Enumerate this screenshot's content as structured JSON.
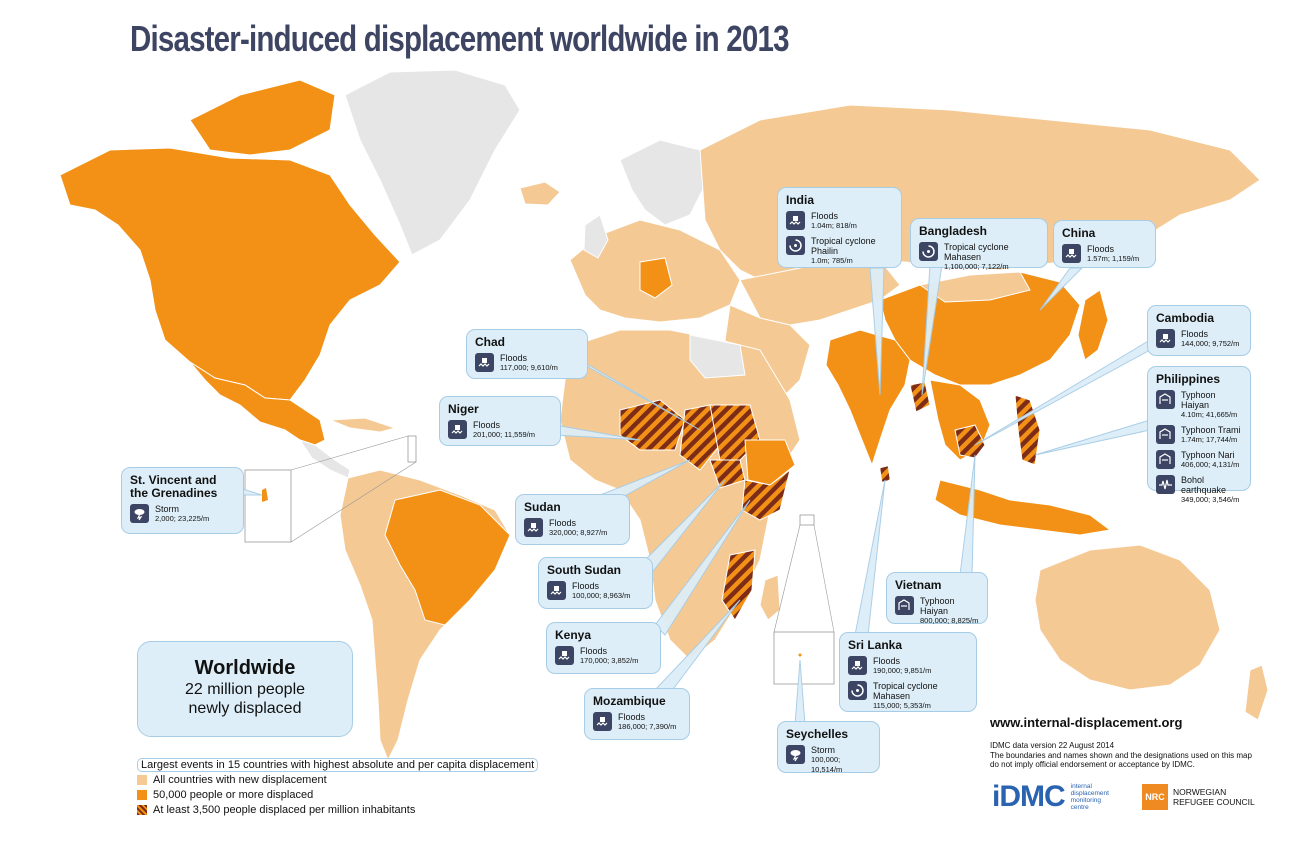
{
  "title": "Disaster-induced displacement worldwide in 2013",
  "colors": {
    "none": "#e6e6e6",
    "any": "#f5c994",
    "over50k": "#f29115",
    "hatch_stripe": "#7c2c17",
    "callout_bg": "#ddeef8",
    "callout_border": "#a7cde6",
    "icon_bg": "#3c4564",
    "title": "#3d4563"
  },
  "callouts": [
    {
      "country": "India",
      "events": [
        {
          "icon": "flood-icon",
          "name": "Floods",
          "value": "1.04m; 818/m"
        },
        {
          "icon": "cyclone-icon",
          "name": "Tropical cyclone Phailin",
          "value": "1.0m; 785/m"
        }
      ]
    },
    {
      "country": "Bangladesh",
      "events": [
        {
          "icon": "cyclone-icon",
          "name": "Tropical cyclone Mahasen",
          "value": "1,100,000; 7,122/m"
        }
      ]
    },
    {
      "country": "China",
      "events": [
        {
          "icon": "flood-icon",
          "name": "Floods",
          "value": "1.57m; 1,159/m"
        }
      ]
    },
    {
      "country": "Cambodia",
      "events": [
        {
          "icon": "flood-icon",
          "name": "Floods",
          "value": "144,000; 9,752/m"
        }
      ]
    },
    {
      "country": "Philippines",
      "events": [
        {
          "icon": "typhoon-icon",
          "name": "Typhoon Haiyan",
          "value": "4.10m; 41,665/m"
        },
        {
          "icon": "typhoon-icon",
          "name": "Typhoon Trami",
          "value": "1.74m; 17,744/m"
        },
        {
          "icon": "typhoon-icon",
          "name": "Typhoon Nari",
          "value": "406,000; 4,131/m"
        },
        {
          "icon": "earthquake-icon",
          "name": "Bohol earthquake",
          "value": "349,000; 3,546/m"
        }
      ]
    },
    {
      "country": "Chad",
      "events": [
        {
          "icon": "flood-icon",
          "name": "Floods",
          "value": "117,000; 9,610/m"
        }
      ]
    },
    {
      "country": "Niger",
      "events": [
        {
          "icon": "flood-icon",
          "name": "Floods",
          "value": "201,000; 11,559/m"
        }
      ]
    },
    {
      "country": "St. Vincent and the Grenadines",
      "events": [
        {
          "icon": "storm-icon",
          "name": "Storm",
          "value": "2,000; 23,225/m"
        }
      ]
    },
    {
      "country": "Sudan",
      "events": [
        {
          "icon": "flood-icon",
          "name": "Floods",
          "value": "320,000; 8,927/m"
        }
      ]
    },
    {
      "country": "South Sudan",
      "events": [
        {
          "icon": "flood-icon",
          "name": "Floods",
          "value": "100,000; 8,963/m"
        }
      ]
    },
    {
      "country": "Kenya",
      "events": [
        {
          "icon": "flood-icon",
          "name": "Floods",
          "value": "170,000; 3,852/m"
        }
      ]
    },
    {
      "country": "Mozambique",
      "events": [
        {
          "icon": "flood-icon",
          "name": "Floods",
          "value": "186,000; 7,390/m"
        }
      ]
    },
    {
      "country": "Vietnam",
      "events": [
        {
          "icon": "typhoon-icon",
          "name": "Typhoon Haiyan",
          "value": "800,000; 8,825/m"
        }
      ]
    },
    {
      "country": "Sri Lanka",
      "events": [
        {
          "icon": "flood-icon",
          "name": "Floods",
          "value": "190,000; 9,851/m"
        },
        {
          "icon": "cyclone-icon",
          "name": "Tropical cyclone Mahasen",
          "value": "115,000; 5,353/m"
        }
      ]
    },
    {
      "country": "Seychelles",
      "events": [
        {
          "icon": "storm-icon",
          "name": "Storm",
          "value": "100,000; 10,514/m"
        }
      ]
    }
  ],
  "worldwide": {
    "title": "Worldwide",
    "line1": "22 million people",
    "line2": "newly displaced"
  },
  "legend": {
    "largest_events": "Largest events in 15 countries with highest absolute and per capita displacement",
    "all_countries": "All countries with new displacement",
    "over_50k": "50,000 people or more displaced",
    "per_capita": "At least 3,500 people displaced per million inhabitants"
  },
  "footer": {
    "url": "www.internal-displacement.org",
    "version": "IDMC data version 22 August 2014",
    "disclaimer1": "The boundaries and names shown and the designations used on this map",
    "disclaimer2": "do not imply official endorsement or acceptance by IDMC.",
    "idmc_logo": "iDMC",
    "idmc_sub": [
      "internal",
      "displacement",
      "monitoring",
      "centre"
    ],
    "nrc_logo": "NRC",
    "nrc_name": [
      "NORWEGIAN",
      "REFUGEE COUNCIL"
    ]
  }
}
